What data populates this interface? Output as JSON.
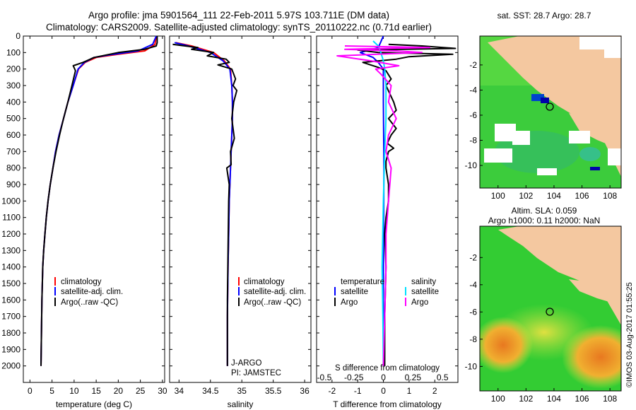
{
  "header": {
    "line1": "Argo profile: jma 5901564_111 22-Feb-2011 5.97S 103.711E (DM data)",
    "line2": "Climatology: CARS2009. Satellite-adjusted climatology: synTS_20110222.nc (0.71d earlier)"
  },
  "colors": {
    "climatology": "#ff0000",
    "satellite": "#0000ff",
    "argo": "#000000",
    "s_satellite": "#00e0ff",
    "s_argo": "#ff00ff",
    "land": "#f4c8a0",
    "ocean": "#33cc33"
  },
  "chart_data": [
    {
      "type": "line",
      "id": "temperature",
      "xlabel": "temperature (deg C)",
      "ylabel": "",
      "xlim": [
        -1.5,
        30.5
      ],
      "ylim": [
        0,
        2100
      ],
      "xticks": [
        0,
        5,
        10,
        15,
        20,
        25,
        30
      ],
      "yticks": [
        0,
        100,
        200,
        300,
        400,
        500,
        600,
        700,
        800,
        900,
        1000,
        1100,
        1200,
        1300,
        1400,
        1500,
        1600,
        1700,
        1800,
        1900,
        2000
      ],
      "legend": [
        "climatology",
        "satellite-adj. clim.",
        "Argo(..raw -QC)"
      ],
      "series": [
        {
          "name": "climatology",
          "color": "#ff0000",
          "x": [
            28.6,
            28.3,
            26.0,
            20.0,
            15.0,
            12.5,
            11.0,
            9.8,
            8.6,
            7.6,
            6.6,
            5.8,
            5.2,
            4.6,
            4.1,
            3.7,
            3.4,
            3.1,
            2.9,
            2.7,
            2.5
          ],
          "y": [
            0,
            50,
            90,
            110,
            130,
            160,
            200,
            300,
            400,
            500,
            600,
            700,
            800,
            900,
            1000,
            1100,
            1200,
            1300,
            1400,
            1600,
            2000
          ]
        },
        {
          "name": "satellite-adj. clim.",
          "color": "#0000ff",
          "x": [
            28.6,
            27.8,
            24.5,
            19.0,
            14.5,
            12.3,
            10.9,
            9.8,
            8.6,
            7.6,
            6.6,
            5.8,
            5.2,
            4.6,
            4.1,
            3.7,
            3.4,
            3.1,
            2.9,
            2.7,
            2.5
          ],
          "y": [
            0,
            50,
            90,
            110,
            130,
            160,
            200,
            300,
            400,
            500,
            600,
            700,
            800,
            900,
            1000,
            1100,
            1200,
            1300,
            1400,
            1600,
            2000
          ]
        },
        {
          "name": "Argo(..raw -QC)",
          "color": "#000000",
          "x": [
            28.8,
            28.8,
            28.6,
            26.0,
            20.0,
            14.5,
            12.0,
            9.8,
            10.3,
            9.5,
            8.6,
            7.6,
            6.7,
            5.9,
            5.2,
            4.6,
            4.1,
            3.7,
            3.4,
            3.1,
            2.9,
            2.7,
            2.5
          ],
          "y": [
            0,
            40,
            60,
            80,
            100,
            130,
            160,
            180,
            210,
            300,
            400,
            500,
            600,
            700,
            800,
            900,
            1000,
            1100,
            1200,
            1300,
            1400,
            1600,
            2000
          ]
        }
      ]
    },
    {
      "type": "line",
      "id": "salinity",
      "xlabel": "salinity",
      "xlim": [
        33.85,
        36.1
      ],
      "ylim": [
        0,
        2100
      ],
      "xticks": [
        34,
        34.5,
        35,
        35.5,
        36
      ],
      "legend": [
        "climatology",
        "satellite-adj. clim.",
        "Argo(..raw -QC)"
      ],
      "annotations": [
        "J-ARGO",
        "PI: JAMSTEC"
      ],
      "series": [
        {
          "name": "climatology",
          "color": "#ff0000",
          "x": [
            33.95,
            34.2,
            34.55,
            34.72,
            34.82,
            34.84,
            34.85,
            34.85,
            34.84,
            34.83,
            34.82,
            34.8,
            34.79,
            34.78,
            34.77,
            34.77
          ],
          "y": [
            40,
            60,
            100,
            150,
            200,
            300,
            400,
            500,
            600,
            700,
            800,
            1000,
            1200,
            1400,
            1700,
            2000
          ]
        },
        {
          "name": "satellite-adj. clim.",
          "color": "#0000ff",
          "x": [
            33.93,
            34.15,
            34.5,
            34.7,
            34.81,
            34.84,
            34.85,
            34.85,
            34.84,
            34.83,
            34.82,
            34.8,
            34.79,
            34.78,
            34.77,
            34.77
          ],
          "y": [
            40,
            60,
            100,
            150,
            200,
            300,
            400,
            500,
            600,
            700,
            800,
            1000,
            1200,
            1400,
            1700,
            2000
          ]
        },
        {
          "name": "Argo(..raw -QC)",
          "color": "#000000",
          "x": [
            33.9,
            34.3,
            34.2,
            34.55,
            34.45,
            34.75,
            34.8,
            34.62,
            34.84,
            34.9,
            34.86,
            34.92,
            34.87,
            34.84,
            34.88,
            34.82,
            34.83,
            34.76,
            34.8,
            34.79,
            34.78,
            34.77,
            34.77
          ],
          "y": [
            50,
            70,
            80,
            100,
            120,
            140,
            160,
            175,
            200,
            260,
            300,
            330,
            400,
            500,
            620,
            700,
            780,
            800,
            900,
            1000,
            1300,
            1600,
            2000
          ]
        }
      ]
    },
    {
      "type": "line",
      "id": "difference",
      "xlabel": "T difference from climatology",
      "xlabel2": "S difference from climatology",
      "xlim": [
        -2.6,
        2.9
      ],
      "ylim": [
        0,
        2100
      ],
      "xticks": [
        -2,
        -1,
        0,
        1,
        2
      ],
      "xticks_s": [
        "-0.5",
        "-0.25",
        "0",
        "0.25",
        "0.5"
      ],
      "legend_t": {
        "title": "temperature",
        "items": [
          "satellite",
          "Argo"
        ]
      },
      "legend_s": {
        "title": "salinity",
        "items": [
          "satellite",
          "Argo"
        ]
      },
      "series": [
        {
          "name": "T satellite",
          "color": "#0000ff",
          "x": [
            0,
            -0.2,
            -0.9,
            -0.4,
            -0.2,
            0,
            0,
            0.02,
            0,
            0
          ],
          "y": [
            0,
            70,
            100,
            130,
            160,
            200,
            400,
            800,
            1500,
            2000
          ]
        },
        {
          "name": "T Argo",
          "color": "#000000",
          "x": [
            0.2,
            1.5,
            2.8,
            -1.0,
            -0.2,
            2.7,
            1.0,
            0.5,
            -0.8,
            -0.2,
            0.1,
            0.3,
            0.1,
            0.4,
            0.5,
            0.2,
            0.5,
            0.3,
            0.15,
            0.4,
            0.2,
            0.1,
            0.1,
            0.2,
            0.2,
            0.1,
            0.05,
            0.1,
            0.05,
            0.05
          ],
          "y": [
            50,
            60,
            75,
            85,
            100,
            110,
            125,
            140,
            160,
            190,
            210,
            260,
            300,
            400,
            450,
            500,
            560,
            600,
            650,
            680,
            700,
            760,
            800,
            900,
            1000,
            1100,
            1200,
            1400,
            1700,
            2000
          ]
        },
        {
          "name": "S satellite",
          "color": "#00e0ff",
          "x": [
            -0.4,
            -0.2,
            -0.1,
            0,
            0.05,
            0.1,
            0.1,
            0.05,
            0,
            -0.05,
            -0.02,
            0
          ],
          "y": [
            30,
            60,
            100,
            150,
            200,
            300,
            500,
            700,
            1000,
            1400,
            1700,
            2000
          ]
        },
        {
          "name": "S Argo",
          "color": "#ff00ff",
          "x": [
            -1.5,
            1.8,
            -1.5,
            0.5,
            1.5,
            -1.8,
            -0.5,
            0.6,
            -0.3,
            -0.1,
            0.3,
            0.2,
            0.5,
            0.2,
            0.1,
            0.3,
            0.2,
            0.1,
            0.1,
            0.05,
            0.0
          ],
          "y": [
            60,
            70,
            80,
            90,
            100,
            120,
            150,
            180,
            200,
            230,
            300,
            400,
            500,
            600,
            700,
            800,
            1000,
            1200,
            1400,
            1700,
            2000
          ]
        }
      ]
    }
  ],
  "maps": {
    "sst": {
      "title": "sat. SST: 28.7  Argo: 28.7",
      "xticks": [
        "100",
        "102",
        "104",
        "106",
        "108"
      ],
      "yticks": [
        "-2",
        "-4",
        "-6",
        "-8",
        "-10"
      ]
    },
    "sla": {
      "title1": "Altim. SLA: 0.059",
      "title2": "Argo h1000: 0.11  h2000: NaN",
      "xticks": [
        "100",
        "102",
        "104",
        "106",
        "108"
      ],
      "yticks": [
        "-2",
        "-4",
        "-6",
        "-8",
        "-10"
      ]
    }
  },
  "footer": {
    "credit": "©IMOS 03-Aug-2017 01:55:25"
  }
}
